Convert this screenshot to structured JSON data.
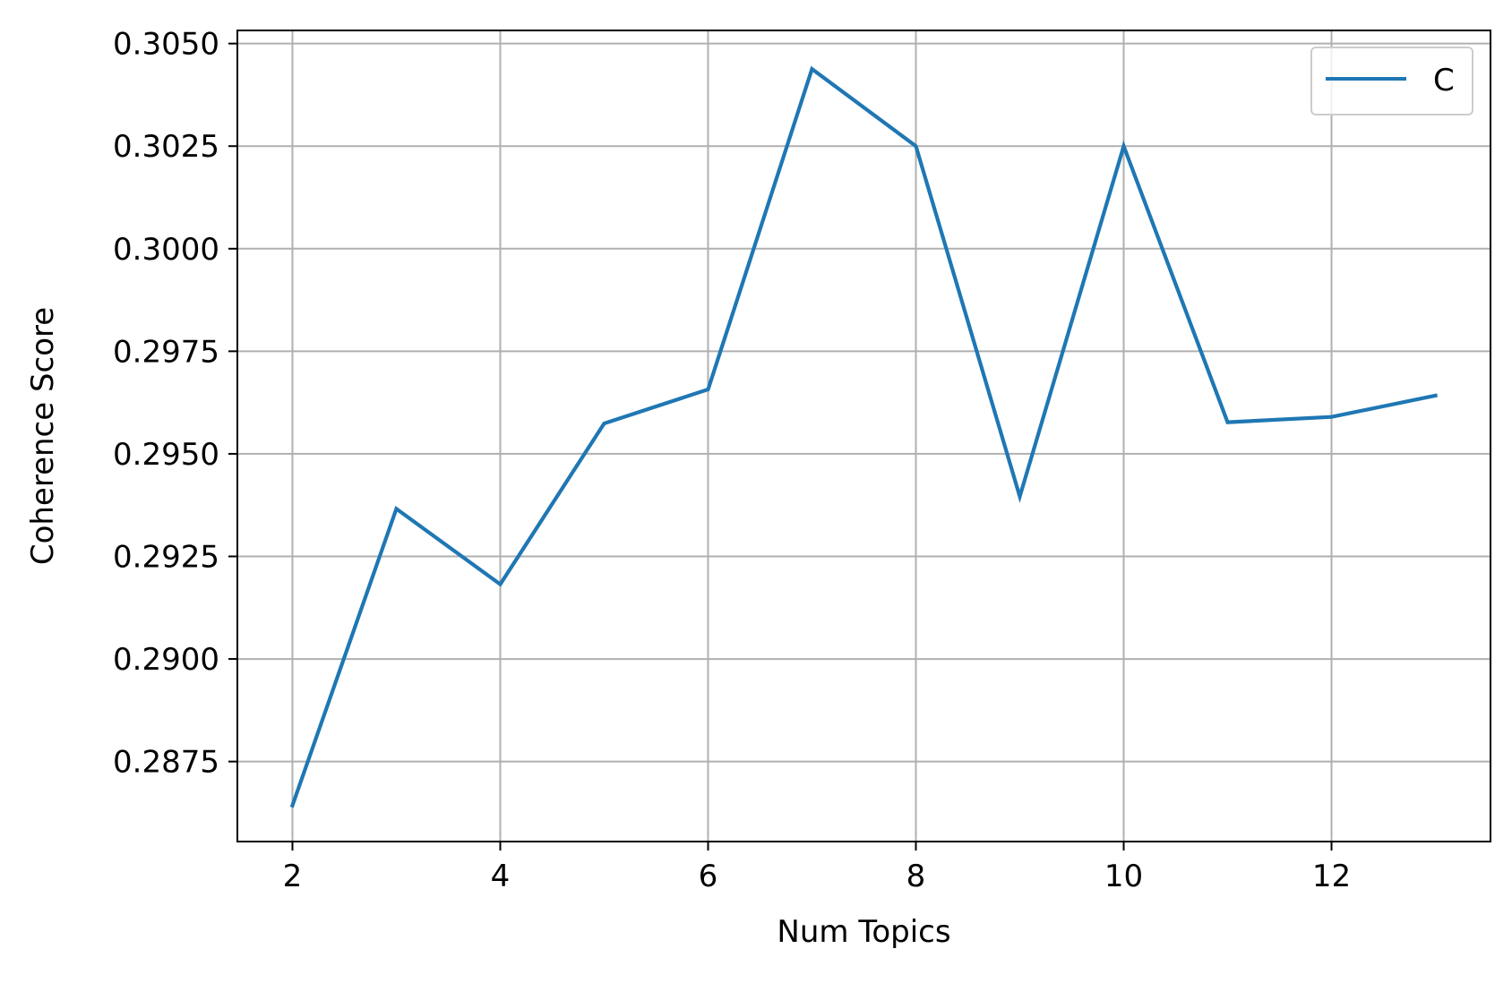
{
  "chart_data": {
    "type": "line",
    "title": "",
    "xlabel": "Num Topics",
    "ylabel": "Coherence Score",
    "x": [
      2,
      3,
      4,
      5,
      6,
      7,
      8,
      9,
      10,
      11,
      12,
      13
    ],
    "series": [
      {
        "name": "C",
        "color": "#1f77b4",
        "values": [
          0.28643,
          0.29366,
          0.29182,
          0.29574,
          0.29657,
          0.30438,
          0.3025,
          0.29396,
          0.3025,
          0.29577,
          0.2959,
          0.29642
        ]
      }
    ],
    "xlim": [
      1.47,
      13.53
    ],
    "ylim": [
      0.28555,
      0.30532
    ],
    "xticks": [
      2,
      4,
      6,
      8,
      10,
      12
    ],
    "xtick_labels": [
      "2",
      "4",
      "6",
      "8",
      "10",
      "12"
    ],
    "yticks": [
      0.2875,
      0.29,
      0.2925,
      0.295,
      0.2975,
      0.3,
      0.3025,
      0.305
    ],
    "ytick_labels": [
      "0.2875",
      "0.2900",
      "0.2925",
      "0.2950",
      "0.2975",
      "0.3000",
      "0.3025",
      "0.3050"
    ],
    "grid": true,
    "legend_position": "top-right"
  }
}
